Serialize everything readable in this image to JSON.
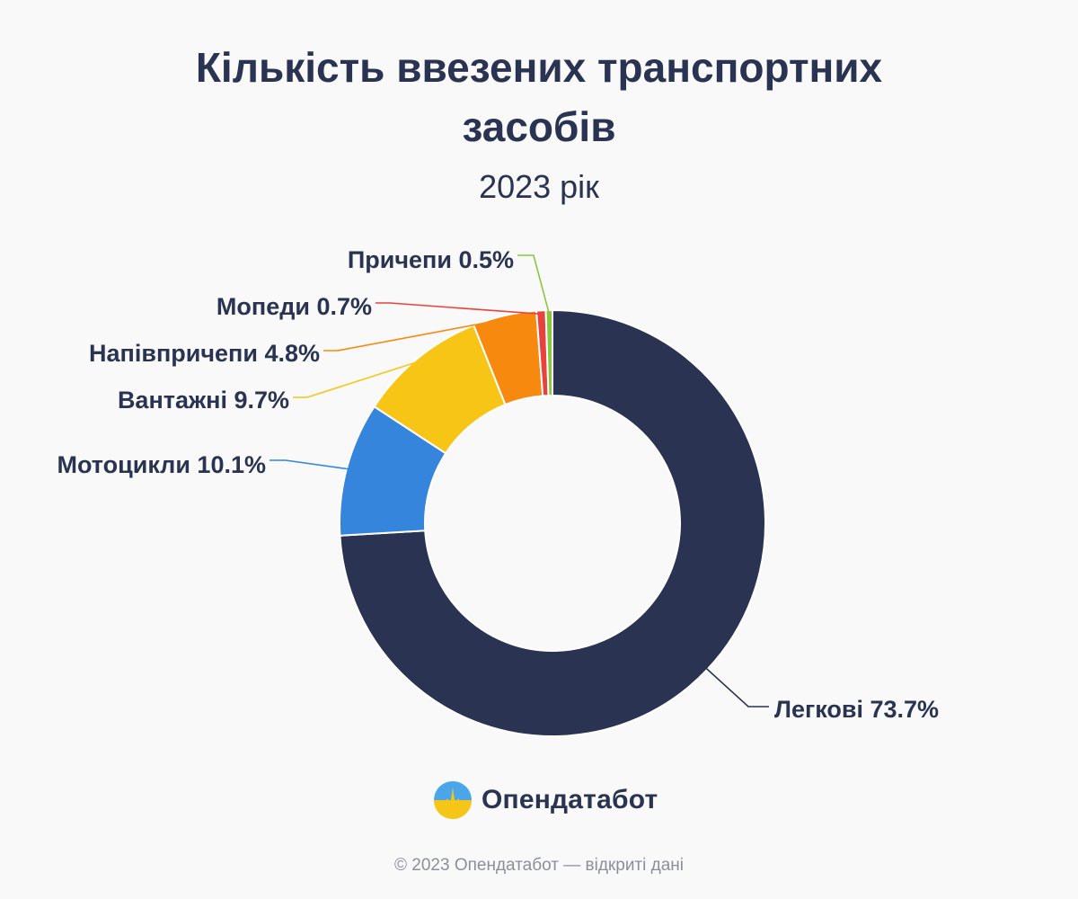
{
  "title_line1": "Кількість ввезених транспортних",
  "title_line2": "засобів",
  "subtitle": "2023 рік",
  "chart_data": {
    "type": "pie",
    "donut": true,
    "title": "Кількість ввезених транспортних засобів",
    "subtitle": "2023 рік",
    "categories": [
      "Легкові",
      "Мотоцикли",
      "Вантажні",
      "Напівпричепи",
      "Мопеди",
      "Причепи"
    ],
    "values": [
      73.7,
      10.1,
      9.7,
      4.8,
      0.7,
      0.5
    ],
    "unit": "%",
    "labels": [
      "Легкові 73.7%",
      "Мотоцикли 10.1%",
      "Вантажні 9.7%",
      "Напівпричепи 4.8%",
      "Мопеди 0.7%",
      "Причепи 0.5%"
    ],
    "colors": [
      "#2a3351",
      "#3585dc",
      "#f7c515",
      "#f8890f",
      "#e8423f",
      "#8cc63e"
    ]
  },
  "brand": {
    "logo_icon": "opendatabot-logo-icon",
    "name": "Опендатабот"
  },
  "footer": "© 2023 Опендатабот — відкриті дані"
}
